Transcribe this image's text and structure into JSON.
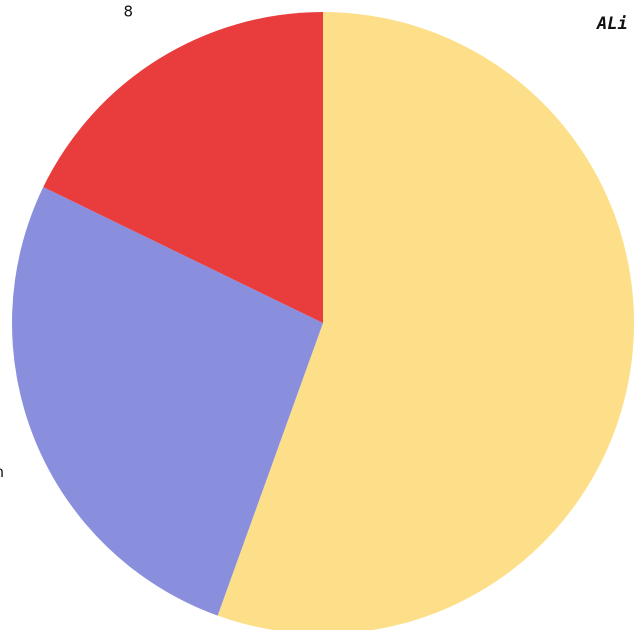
{
  "chart_data": {
    "type": "pie",
    "categories": [
      null,
      "nigen",
      "8"
    ],
    "values": [
      55.5,
      26.7,
      17.8
    ],
    "colors": [
      "#fddf8a",
      "#8a8fdd",
      "#e93c3c"
    ],
    "annotation": "ALi"
  }
}
